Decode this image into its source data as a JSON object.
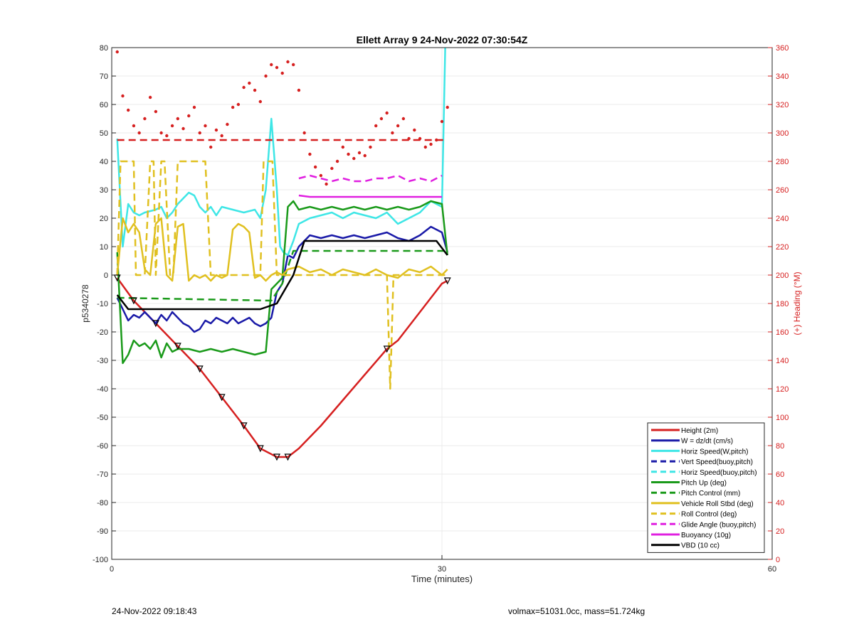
{
  "footer": {
    "left": "24-Nov-2022 09:18:43",
    "right": "volmax=51031.0cc, mass=51.724kg"
  },
  "chart_data": {
    "type": "line",
    "title": "Ellett Array 9 24-Nov-2022 07:30:54Z",
    "xlabel": "Time (minutes)",
    "ylabel": "p5340278",
    "y2label": "(+) Heading (°M)",
    "xlim": [
      0,
      60
    ],
    "ylim": [
      -100,
      80
    ],
    "y2lim": [
      0,
      360
    ],
    "x_ticks": [
      0,
      30,
      60
    ],
    "y_ticks": [
      -100,
      -90,
      -80,
      -70,
      -60,
      -50,
      -40,
      -30,
      -20,
      -10,
      0,
      10,
      20,
      30,
      40,
      50,
      60,
      70,
      80
    ],
    "y2_ticks": [
      0,
      20,
      40,
      60,
      80,
      100,
      120,
      140,
      160,
      180,
      200,
      220,
      240,
      260,
      280,
      300,
      320,
      340,
      360
    ],
    "grid": true,
    "legend_position": "bottom-right",
    "colors": {
      "red": "#d62020",
      "blue": "#1a1aa8",
      "cyan": "#3ee6e6",
      "green": "#1a9a1a",
      "yellow": "#e0c020",
      "magenta": "#e020e0",
      "black": "#000000"
    },
    "series": [
      {
        "name": "Height (2m)",
        "color": "red",
        "dash": false,
        "axis": "left",
        "x": [
          0.5,
          2,
          4,
          6,
          8,
          10,
          12,
          13.5,
          15,
          16,
          17,
          19,
          21,
          23,
          25,
          26,
          28,
          30,
          30.5
        ],
        "y": [
          -1,
          -9,
          -17,
          -25,
          -33,
          -43,
          -53,
          -61,
          -64,
          -64,
          -61,
          -53,
          -44,
          -35,
          -26,
          -23,
          -13,
          -3,
          -2
        ]
      },
      {
        "name": "W = dz/dt (cm/s)",
        "color": "blue",
        "dash": false,
        "axis": "left",
        "x": [
          0.5,
          1,
          1.5,
          2,
          2.5,
          3,
          3.5,
          4,
          4.5,
          5,
          5.5,
          6,
          6.5,
          7,
          7.5,
          8,
          8.5,
          9,
          9.5,
          10,
          10.5,
          11,
          11.5,
          12,
          12.5,
          13,
          13.5,
          14,
          14.5,
          15,
          15.5,
          16,
          16.5,
          17,
          18,
          19,
          20,
          21,
          22,
          23,
          24,
          25,
          26,
          27,
          28,
          29,
          30,
          30.5
        ],
        "y": [
          -8,
          -12,
          -16,
          -14,
          -15,
          -13,
          -15,
          -17,
          -14,
          -16,
          -13,
          -15,
          -17,
          -18,
          -20,
          -19,
          -16,
          -17,
          -15,
          -16,
          -17,
          -15,
          -17,
          -16,
          -15,
          -17,
          -18,
          -17,
          -15,
          -6,
          -3,
          7,
          6,
          10,
          14,
          13,
          14,
          13,
          14,
          13,
          14,
          15,
          13,
          12,
          14,
          17,
          15,
          8
        ]
      },
      {
        "name": "Horiz Speed(W,pitch)",
        "color": "cyan",
        "dash": false,
        "axis": "left",
        "x": [
          0.5,
          1,
          1.5,
          2,
          2.5,
          3,
          4,
          4.5,
          5,
          5.5,
          6,
          7,
          7.5,
          8,
          8.5,
          9,
          9.5,
          10,
          11,
          12,
          13,
          13.5,
          14,
          14.5,
          15,
          15.3,
          15.6,
          16,
          16.5,
          17,
          18,
          19,
          20,
          21,
          22,
          23,
          24,
          25,
          26,
          27,
          28,
          29,
          30,
          30.3
        ],
        "y": [
          48,
          10,
          25,
          22,
          21,
          22,
          23,
          24,
          20,
          22,
          25,
          29,
          28,
          24,
          22,
          24,
          21,
          24,
          23,
          22,
          23,
          20,
          30,
          55,
          30,
          10,
          8,
          7,
          12,
          18,
          20,
          21,
          22,
          20,
          22,
          21,
          20,
          22,
          18,
          20,
          22,
          26,
          24,
          80
        ]
      },
      {
        "name": "Vert Speed(buoy,pitch)",
        "color": "blue",
        "dash": true,
        "axis": "left",
        "x": [],
        "y": []
      },
      {
        "name": "Horiz Speed(buoy,pitch)",
        "color": "cyan",
        "dash": true,
        "axis": "left",
        "x": [],
        "y": []
      },
      {
        "name": "Pitch Up (deg)",
        "color": "green",
        "dash": false,
        "axis": "left",
        "x": [
          0.5,
          1,
          1.5,
          2,
          2.5,
          3,
          3.5,
          4,
          4.5,
          5,
          5.5,
          6,
          7,
          8,
          9,
          10,
          11,
          12,
          13,
          14,
          14.5,
          15,
          15.5,
          16,
          16.5,
          17,
          18,
          19,
          20,
          21,
          22,
          23,
          24,
          25,
          26,
          27,
          28,
          29,
          30,
          30.5
        ],
        "y": [
          8,
          -31,
          -28,
          -23,
          -25,
          -24,
          -26,
          -23,
          -29,
          -24,
          -27,
          -26,
          -26,
          -27,
          -26,
          -27,
          -26,
          -27,
          -28,
          -27,
          -5,
          -3,
          -1,
          24,
          26,
          23,
          24,
          23,
          24,
          23,
          24,
          23,
          24,
          23,
          24,
          23,
          24,
          26,
          25,
          7
        ]
      },
      {
        "name": "Pitch Control (mm)",
        "color": "green",
        "dash": true,
        "axis": "left",
        "x": [
          0.5,
          14.5,
          15.5,
          16.5,
          30.5
        ],
        "y": [
          -8,
          -9,
          -3,
          8.5,
          8.5
        ]
      },
      {
        "name": "Vehicle Roll Stbd (deg)",
        "color": "yellow",
        "dash": false,
        "axis": "left",
        "x": [
          0.5,
          1,
          1.5,
          2,
          2.5,
          3,
          3.5,
          4,
          4.5,
          5,
          5.5,
          6,
          6.5,
          7,
          7.5,
          8,
          8.5,
          9,
          9.5,
          10,
          10.5,
          11,
          11.5,
          12,
          12.5,
          13,
          13.5,
          14,
          14.5,
          15,
          15.5,
          16,
          17,
          18,
          19,
          20,
          21,
          22,
          23,
          24,
          25,
          26,
          27,
          28,
          29,
          30,
          30.5
        ],
        "y": [
          0,
          20,
          15,
          18,
          15,
          2,
          0,
          18,
          20,
          0,
          -2,
          17,
          18,
          -2,
          0,
          -1,
          0,
          -2,
          0,
          -1,
          0,
          16,
          18,
          17,
          15,
          -1,
          0,
          -2,
          0,
          1,
          0,
          2,
          3,
          1,
          2,
          0,
          2,
          1,
          0,
          2,
          0,
          -1,
          2,
          1,
          3,
          0,
          2
        ]
      },
      {
        "name": "Roll Control (deg)",
        "color": "yellow",
        "dash": true,
        "axis": "left",
        "x": [
          0.5,
          0.8,
          1,
          2,
          2.2,
          3,
          3.5,
          3.8,
          4,
          4.5,
          4.8,
          5.3,
          5.6,
          6,
          6.5,
          8.5,
          9,
          13.5,
          13.8,
          14.2,
          14.6,
          15,
          16,
          25,
          25.3,
          25.6,
          26,
          26.5,
          30.5
        ],
        "y": [
          0,
          40,
          40,
          40,
          0,
          0,
          40,
          40,
          0,
          40,
          40,
          0,
          0,
          40,
          40,
          40,
          0,
          0,
          40,
          40,
          40,
          0,
          0,
          0,
          -40,
          0,
          0,
          0,
          0
        ]
      },
      {
        "name": "Glide Angle (buoy,pitch)",
        "color": "magenta",
        "dash": true,
        "axis": "left",
        "x": [
          17,
          18,
          19,
          20,
          21,
          22,
          23,
          24,
          25,
          26,
          27,
          28,
          29,
          30
        ],
        "y": [
          34,
          35,
          34,
          33,
          34,
          33,
          33,
          34,
          34,
          35,
          33,
          34,
          33,
          35
        ]
      },
      {
        "name": "Buoyancy (10g)",
        "color": "magenta",
        "dash": false,
        "axis": "left",
        "x": [
          17,
          18,
          30
        ],
        "y": [
          28,
          27.5,
          27.5
        ]
      },
      {
        "name": "VBD (10 cc)",
        "color": "black",
        "dash": false,
        "axis": "left",
        "x": [
          0.5,
          1.5,
          13.5,
          15,
          16.5,
          17.5,
          29.5,
          30.5
        ],
        "y": [
          -7,
          -12,
          -12,
          -10,
          0,
          12,
          12,
          7
        ]
      },
      {
        "name": "",
        "color": "red",
        "dash": true,
        "axis": "right",
        "style": "heading-mean",
        "x": [
          0.5,
          30.5
        ],
        "y": [
          295,
          295
        ]
      },
      {
        "name": "",
        "color": "red",
        "dash": false,
        "axis": "right",
        "style": "dots",
        "x": [
          0.5,
          1,
          1.5,
          2,
          2.5,
          3,
          3.5,
          4,
          4.5,
          5,
          5.5,
          6,
          6.5,
          7,
          7.5,
          8,
          8.5,
          9,
          9.5,
          10,
          10.5,
          11,
          11.5,
          12,
          12.5,
          13,
          13.5,
          14,
          14.5,
          15,
          15.5,
          16,
          16.5,
          17,
          17.5,
          18,
          18.5,
          19,
          19.5,
          20,
          20.5,
          21,
          21.5,
          22,
          22.5,
          23,
          23.5,
          24,
          24.5,
          25,
          25.5,
          26,
          26.5,
          27,
          27.5,
          28,
          28.5,
          29,
          29.5,
          30,
          30.5
        ],
        "y": [
          357,
          326,
          316,
          305,
          300,
          310,
          325,
          315,
          300,
          298,
          305,
          310,
          303,
          312,
          318,
          300,
          305,
          290,
          302,
          298,
          306,
          318,
          320,
          332,
          335,
          330,
          322,
          340,
          348,
          346,
          342,
          350,
          348,
          330,
          300,
          285,
          276,
          270,
          264,
          275,
          280,
          290,
          285,
          282,
          286,
          284,
          290,
          305,
          310,
          314,
          300,
          305,
          310,
          296,
          302,
          296,
          290,
          292,
          295,
          308,
          318
        ]
      }
    ]
  }
}
